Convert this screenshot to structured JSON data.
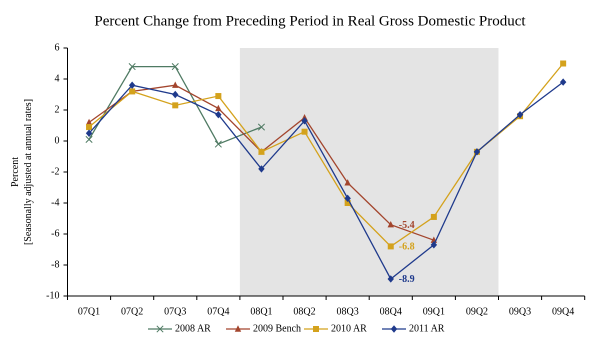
{
  "chart_data": {
    "type": "line",
    "title": "Percent Change from Preceding Period in Real Gross Domestic Product",
    "ylabel": [
      "Percent",
      "[Seasonally adjusted at annual rates]"
    ],
    "categories": [
      "07Q1",
      "07Q2",
      "07Q3",
      "07Q4",
      "08Q1",
      "08Q2",
      "08Q3",
      "08Q4",
      "09Q1",
      "09Q2",
      "09Q3",
      "09Q4"
    ],
    "ylim": [
      -10,
      6
    ],
    "yticks": [
      -10,
      -8,
      -6,
      -4,
      -2,
      0,
      2,
      4,
      6
    ],
    "shaded_range": [
      4,
      9
    ],
    "shade_color": "#e4e4e4",
    "series": [
      {
        "name": "2008 AR",
        "color": "#4f7a63",
        "marker": "x",
        "values": [
          0.1,
          4.8,
          4.8,
          -0.2,
          0.9,
          null,
          null,
          null,
          null,
          null,
          null,
          null
        ],
        "labeled_points": []
      },
      {
        "name": "2009 Bench",
        "color": "#a3452d",
        "marker": "triangle",
        "values": [
          1.2,
          3.2,
          3.6,
          2.1,
          -0.7,
          1.5,
          -2.7,
          -5.4,
          -6.4,
          null,
          null,
          null
        ],
        "labeled_points": [
          7
        ]
      },
      {
        "name": "2010 AR",
        "color": "#d4a21c",
        "marker": "square",
        "values": [
          0.9,
          3.2,
          2.3,
          2.9,
          -0.7,
          0.6,
          -4.0,
          -6.8,
          -4.9,
          -0.7,
          1.6,
          5.0
        ],
        "labeled_points": [
          7
        ]
      },
      {
        "name": "2011 AR",
        "color": "#1f3a8c",
        "marker": "diamond",
        "values": [
          0.5,
          3.6,
          3.0,
          1.7,
          -1.8,
          1.3,
          -3.7,
          -8.9,
          -6.7,
          -0.7,
          1.7,
          3.8
        ],
        "labeled_points": [
          7
        ]
      }
    ]
  }
}
